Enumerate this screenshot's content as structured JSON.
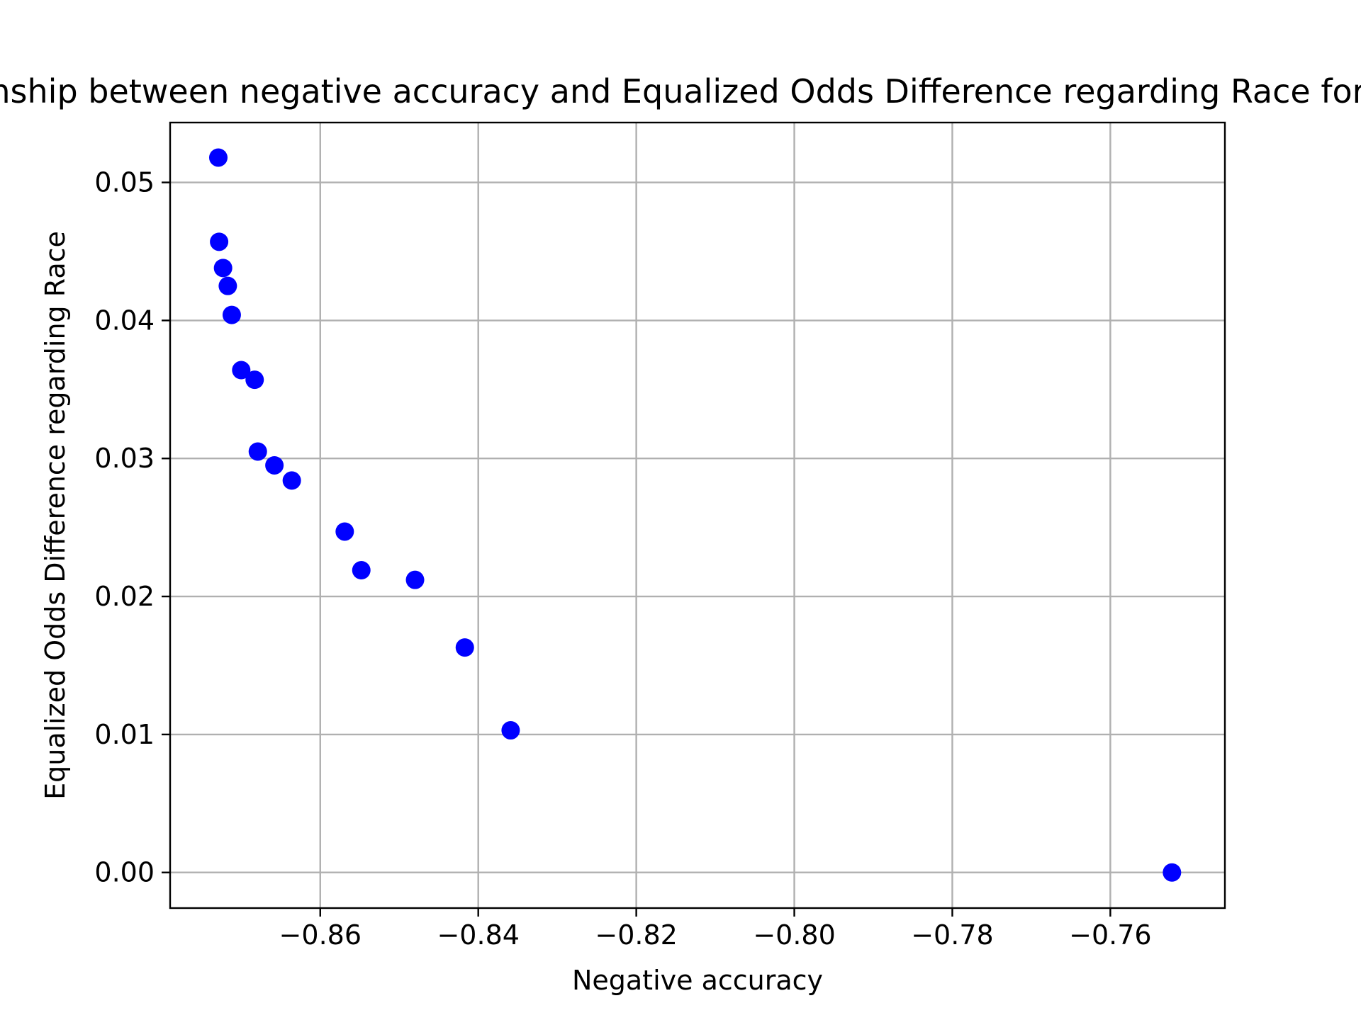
{
  "chart_data": {
    "type": "scatter",
    "title": "Relationship between negative accuracy and Equalized Odds Difference regarding Race for the front",
    "xlabel": "Negative accuracy",
    "ylabel": "Equalized Odds Difference regarding Race",
    "xlim": [
      -0.879,
      -0.7455
    ],
    "ylim": [
      -0.00258,
      0.05434
    ],
    "x_ticks": [
      -0.86,
      -0.84,
      -0.82,
      -0.8,
      -0.78,
      -0.76
    ],
    "x_tick_labels": [
      "−0.86",
      "−0.84",
      "−0.82",
      "−0.80",
      "−0.78",
      "−0.76"
    ],
    "y_ticks": [
      0.0,
      0.01,
      0.02,
      0.03,
      0.04,
      0.05
    ],
    "y_tick_labels": [
      "0.00",
      "0.01",
      "0.02",
      "0.03",
      "0.04",
      "0.05"
    ],
    "grid": true,
    "marker_color": "#0000ff",
    "grid_color": "#b0b0b0",
    "series": [
      {
        "x": [
          -0.8729,
          -0.8728,
          -0.8723,
          -0.8717,
          -0.8712,
          -0.87,
          -0.8683,
          -0.8679,
          -0.8658,
          -0.8636,
          -0.8569,
          -0.8548,
          -0.848,
          -0.8417,
          -0.8359,
          -0.7522
        ],
        "y": [
          0.0518,
          0.0457,
          0.0438,
          0.0425,
          0.0404,
          0.0364,
          0.0357,
          0.0305,
          0.0295,
          0.0284,
          0.0247,
          0.0219,
          0.0212,
          0.0163,
          0.0103,
          0.0
        ]
      }
    ]
  }
}
